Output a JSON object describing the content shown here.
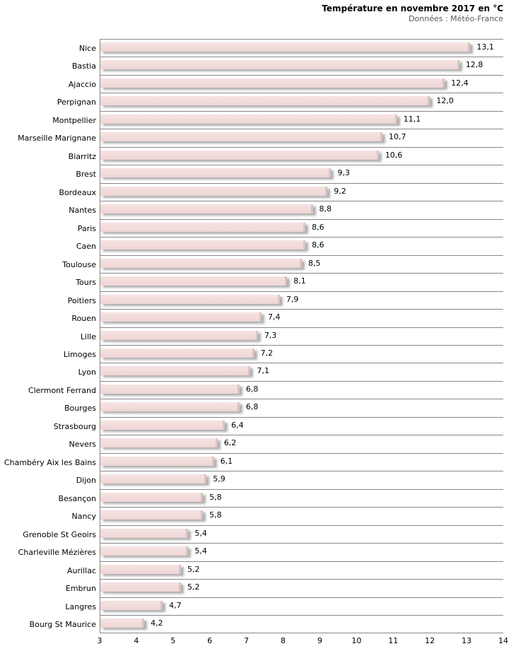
{
  "header": {
    "title": "Température en novembre 2017 en °C",
    "subtitle": "Données : Météo-France"
  },
  "chart_data": {
    "type": "bar",
    "orientation": "horizontal",
    "title": "Température en novembre 2017 en °C",
    "subtitle": "Données : Météo-France",
    "xlabel": "",
    "ylabel": "",
    "legend": false,
    "grid": "category-separator-lines",
    "xlim": [
      3,
      14
    ],
    "x_ticks": [
      "3",
      "4",
      "5",
      "6",
      "7",
      "8",
      "9",
      "10",
      "11",
      "12",
      "13",
      "14"
    ],
    "categories": [
      "Nice",
      "Bastia",
      "Ajaccio",
      "Perpignan",
      "Montpellier",
      "Marseille Marignane",
      "Biarritz",
      "Brest",
      "Bordeaux",
      "Nantes",
      "Paris",
      "Caen",
      "Toulouse",
      "Tours",
      "Poitiers",
      "Rouen",
      "Lille",
      "Limoges",
      "Lyon",
      "Clermont Ferrand",
      "Bourges",
      "Strasbourg",
      "Nevers",
      "Chambéry Aix les Bains",
      "Dijon",
      "Besançon",
      "Nancy",
      "Grenoble St Geoirs",
      "Charleville Mézières",
      "Aurillac",
      "Embrun",
      "Langres",
      "Bourg St Maurice"
    ],
    "values": [
      13.1,
      12.8,
      12.4,
      12.0,
      11.1,
      10.7,
      10.6,
      9.3,
      9.2,
      8.8,
      8.6,
      8.6,
      8.5,
      8.1,
      7.9,
      7.4,
      7.3,
      7.2,
      7.1,
      6.8,
      6.8,
      6.4,
      6.2,
      6.1,
      5.9,
      5.8,
      5.8,
      5.4,
      5.4,
      5.2,
      5.2,
      4.7,
      4.2
    ],
    "value_labels": [
      "13,1",
      "12,8",
      "12,4",
      "12,0",
      "11,1",
      "10,7",
      "10,6",
      "9,3",
      "9,2",
      "8,8",
      "8,6",
      "8,6",
      "8,5",
      "8,1",
      "7,9",
      "7,4",
      "7,3",
      "7,2",
      "7,1",
      "6,8",
      "6,8",
      "6,4",
      "6,2",
      "6,1",
      "5,9",
      "5,8",
      "5,8",
      "5,4",
      "5,4",
      "5,2",
      "5,2",
      "4,7",
      "4,2"
    ],
    "colors": {
      "bar_fill": "#f2dcdb",
      "bar_cap": "#dcc3c2",
      "bar_shadow": "rgba(130,130,130,0.65)",
      "gridline": "#878787",
      "text": "#000000",
      "subtitle_text": "#595959",
      "background": "#ffffff"
    }
  }
}
